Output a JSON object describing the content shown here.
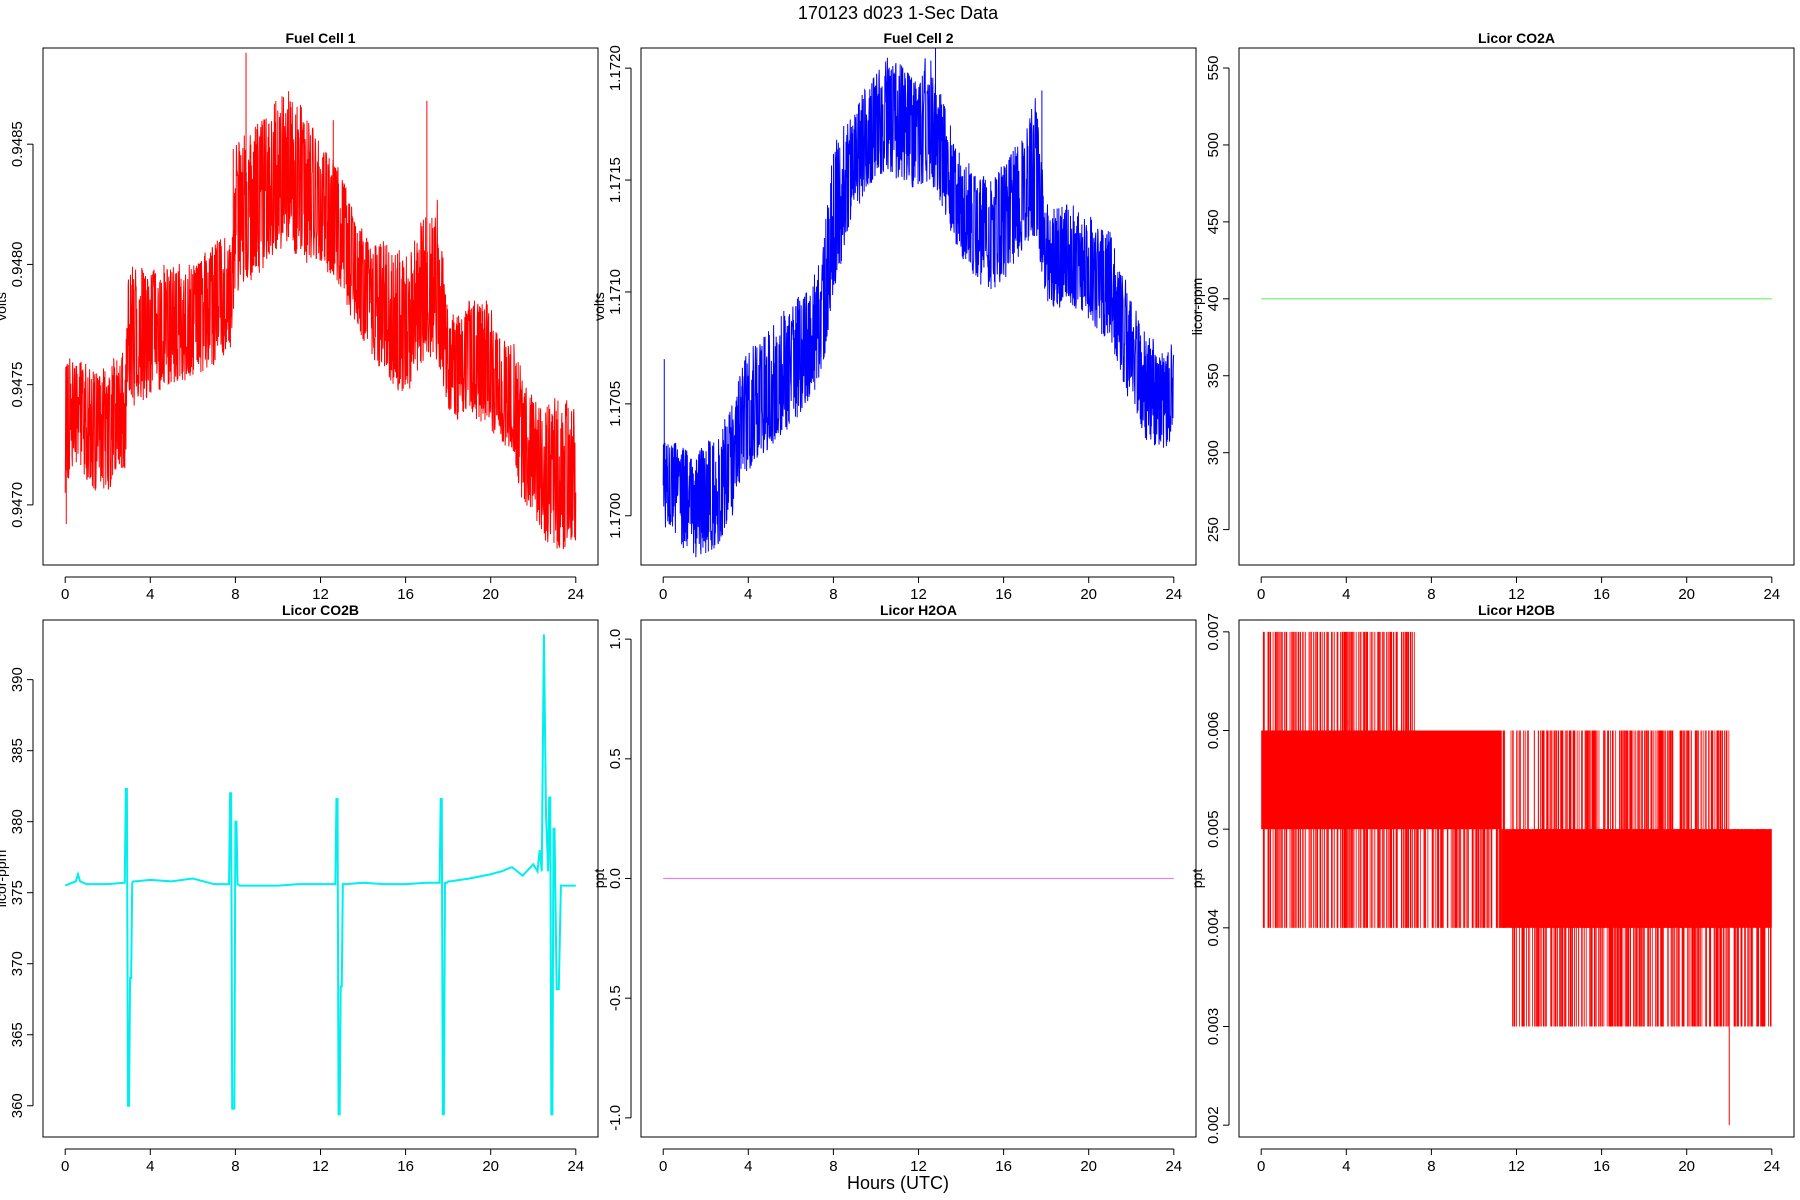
{
  "figure": {
    "title": "170123   d023   1-Sec Data",
    "xlabel": "Hours (UTC)"
  },
  "chart_data": [
    {
      "type": "line",
      "title": "Fuel Cell 1",
      "xlabel": "",
      "ylabel": "volts",
      "color": "#ff0000",
      "xlim": [
        0,
        24
      ],
      "xticks": [
        0,
        4,
        8,
        12,
        16,
        20,
        24
      ],
      "ylim": [
        0.94675,
        0.9489
      ],
      "yticks": [
        "0.9470",
        "0.9475",
        "0.9480",
        "0.9485"
      ],
      "grid": false,
      "series": [
        {
          "x": [
            0,
            0.5,
            1,
            1.5,
            2,
            2.5,
            2.8,
            3,
            4,
            5,
            6,
            7,
            7.8,
            8,
            9,
            10,
            10.5,
            11,
            12,
            13,
            13.5,
            14,
            14.5,
            15,
            16,
            17,
            17.5,
            18,
            18.5,
            19,
            20,
            20.5,
            21,
            21.5,
            22,
            22.5,
            23,
            23.5,
            24
          ],
          "mean": [
            0.94745,
            0.94738,
            0.94735,
            0.94728,
            0.9473,
            0.94735,
            0.94738,
            0.94765,
            0.9477,
            0.94775,
            0.94778,
            0.94785,
            0.94792,
            0.9481,
            0.94822,
            0.9483,
            0.94835,
            0.94828,
            0.94825,
            0.94815,
            0.948,
            0.94792,
            0.94785,
            0.9478,
            0.94772,
            0.9479,
            0.9479,
            0.9476,
            0.94755,
            0.94762,
            0.94755,
            0.94748,
            0.94745,
            0.94725,
            0.9472,
            0.9471,
            0.94708,
            0.94705,
            0.9471
          ],
          "max": [
            0.9477,
            0.9476,
            0.9476,
            0.94755,
            0.9476,
            0.94762,
            0.94765,
            0.948,
            0.94798,
            0.94802,
            0.948,
            0.9481,
            0.94815,
            0.9485,
            0.9486,
            0.9487,
            0.94872,
            0.94868,
            0.9485,
            0.9484,
            0.94825,
            0.94815,
            0.94808,
            0.9481,
            0.94805,
            0.94825,
            0.94828,
            0.9478,
            0.9478,
            0.94785,
            0.94785,
            0.9477,
            0.9477,
            0.94755,
            0.94745,
            0.9474,
            0.94745,
            0.94747,
            0.9474
          ],
          "min": [
            0.947,
            0.94718,
            0.9471,
            0.94705,
            0.94705,
            0.94712,
            0.94715,
            0.9474,
            0.94745,
            0.9475,
            0.94752,
            0.94758,
            0.94765,
            0.94785,
            0.94795,
            0.94805,
            0.9481,
            0.948,
            0.948,
            0.9479,
            0.94775,
            0.94768,
            0.9476,
            0.94752,
            0.94745,
            0.94762,
            0.9476,
            0.9474,
            0.94735,
            0.94738,
            0.9473,
            0.94725,
            0.94722,
            0.947,
            0.94695,
            0.94685,
            0.94682,
            0.9468,
            0.94685
          ],
          "spikes": [
            [
              0.05,
              0.94692
            ],
            [
              8.5,
              0.94888
            ],
            [
              10.5,
              0.94872
            ],
            [
              12.6,
              0.9486
            ],
            [
              17.0,
              0.94868
            ],
            [
              7.9,
              0.94848
            ]
          ]
        }
      ]
    },
    {
      "type": "line",
      "title": "Fuel Cell 2",
      "xlabel": "",
      "ylabel": "volts",
      "color": "#0000ff",
      "xlim": [
        0,
        24
      ],
      "xticks": [
        0,
        4,
        8,
        12,
        16,
        20,
        24
      ],
      "ylim": [
        1.16978,
        1.17209
      ],
      "yticks": [
        "1.1700",
        "1.1705",
        "1.1710",
        "1.1715",
        "1.1720"
      ],
      "grid": false,
      "series": [
        {
          "x": [
            0,
            0.5,
            1,
            1.5,
            2,
            2.5,
            3,
            3.5,
            4,
            5,
            6,
            7,
            7.5,
            8,
            9,
            10,
            10.5,
            11,
            12,
            12.5,
            13,
            14,
            15,
            15.5,
            16,
            17,
            17.5,
            18,
            18.5,
            19,
            20,
            20.5,
            21,
            21.5,
            22,
            22.5,
            23,
            23.5,
            24
          ],
          "mean": [
            1.1702,
            1.17015,
            1.17012,
            1.17008,
            1.1701,
            1.17015,
            1.1702,
            1.1703,
            1.17045,
            1.17055,
            1.17065,
            1.17075,
            1.1709,
            1.1713,
            1.1716,
            1.17175,
            1.1718,
            1.17178,
            1.1717,
            1.17172,
            1.17165,
            1.1714,
            1.17128,
            1.17125,
            1.1713,
            1.17145,
            1.1715,
            1.1712,
            1.17115,
            1.17118,
            1.1711,
            1.17105,
            1.17102,
            1.1709,
            1.17075,
            1.1706,
            1.17055,
            1.1705,
            1.17058
          ],
          "max": [
            1.1704,
            1.17035,
            1.1703,
            1.17028,
            1.17032,
            1.17038,
            1.17045,
            1.1706,
            1.17075,
            1.17085,
            1.17095,
            1.17105,
            1.1712,
            1.17165,
            1.17185,
            1.172,
            1.17205,
            1.17203,
            1.17195,
            1.1721,
            1.1719,
            1.17162,
            1.17152,
            1.1715,
            1.17158,
            1.17172,
            1.17188,
            1.1714,
            1.17138,
            1.1714,
            1.17135,
            1.17128,
            1.17128,
            1.17112,
            1.17098,
            1.17085,
            1.1708,
            1.17072,
            1.17078
          ],
          "min": [
            1.16995,
            1.1699,
            1.16985,
            1.1698,
            1.16982,
            1.16985,
            1.16995,
            1.17005,
            1.1702,
            1.1703,
            1.1704,
            1.17052,
            1.17065,
            1.171,
            1.17135,
            1.1715,
            1.17155,
            1.1715,
            1.17145,
            1.1715,
            1.1714,
            1.17115,
            1.17102,
            1.171,
            1.17105,
            1.1712,
            1.17125,
            1.17095,
            1.17092,
            1.17095,
            1.17088,
            1.17082,
            1.17078,
            1.17062,
            1.17048,
            1.17035,
            1.17032,
            1.17028,
            1.17035
          ],
          "spikes": [
            [
              12.8,
              1.1721
            ],
            [
              17.8,
              1.1719
            ],
            [
              0.05,
              1.1707
            ]
          ]
        }
      ]
    },
    {
      "type": "line",
      "title": "Licor CO2A",
      "xlabel": "",
      "ylabel": "licor-ppm",
      "color": "#66ee66",
      "xlim": [
        0,
        24
      ],
      "xticks": [
        0,
        4,
        8,
        12,
        16,
        20,
        24
      ],
      "ylim": [
        227,
        563
      ],
      "yticks": [
        "250",
        "300",
        "350",
        "400",
        "450",
        "500",
        "550"
      ],
      "grid": false,
      "series": [
        {
          "x": [
            0,
            24
          ],
          "y": [
            400,
            400
          ]
        }
      ]
    },
    {
      "type": "line",
      "title": "Licor CO2B",
      "xlabel": "",
      "ylabel": "licor-ppm",
      "color": "#00eeee",
      "xlim": [
        0,
        24
      ],
      "xticks": [
        0,
        4,
        8,
        12,
        16,
        20,
        24
      ],
      "ylim": [
        357.8,
        394.2
      ],
      "yticks": [
        "360",
        "365",
        "370",
        "375",
        "380",
        "385",
        "390"
      ],
      "grid": false,
      "series": [
        {
          "x": [
            0,
            0.5,
            0.6,
            0.7,
            1,
            2,
            2.8,
            2.85,
            2.9,
            2.95,
            3.0,
            3.05,
            3.1,
            3.15,
            3.2,
            3.3,
            4,
            5,
            6,
            7,
            7.7,
            7.75,
            7.8,
            7.85,
            7.95,
            8.0,
            8.05,
            8.1,
            8.2,
            8.25,
            8.3,
            9,
            10,
            11,
            12,
            12.7,
            12.75,
            12.8,
            12.85,
            12.9,
            12.95,
            13.0,
            13.05,
            13.1,
            13.2,
            14,
            15,
            16,
            17,
            17.6,
            17.65,
            17.7,
            17.75,
            17.8,
            17.85,
            17.9,
            17.95,
            18.0,
            18.1,
            19,
            20,
            20.5,
            21,
            21.5,
            22,
            22.2,
            22.3,
            22.4,
            22.5,
            22.6,
            22.7,
            22.75,
            22.8,
            22.85,
            22.9,
            22.95,
            23.0,
            23.1,
            23.2,
            23.3,
            23.4,
            23.5,
            24
          ],
          "y": [
            375.5,
            375.8,
            376.3,
            375.8,
            375.6,
            375.6,
            375.7,
            382.3,
            382.3,
            360.0,
            360.0,
            369.0,
            369.0,
            375.7,
            375.8,
            375.8,
            375.9,
            375.8,
            376.0,
            375.6,
            375.6,
            382.0,
            382.0,
            359.8,
            359.8,
            380.0,
            380.0,
            375.6,
            375.5,
            375.5,
            375.5,
            375.5,
            375.5,
            375.6,
            375.6,
            375.6,
            381.6,
            381.6,
            359.4,
            359.4,
            368.4,
            368.4,
            375.6,
            375.6,
            375.6,
            375.7,
            375.6,
            375.6,
            375.7,
            375.7,
            381.6,
            381.6,
            359.4,
            359.4,
            375.7,
            375.7,
            375.7,
            375.8,
            375.8,
            376.0,
            376.3,
            376.5,
            376.8,
            376.2,
            377.0,
            376.5,
            378.0,
            376.5,
            393.2,
            380.5,
            376.5,
            381.7,
            381.7,
            359.4,
            359.4,
            379.5,
            379.5,
            368.2,
            368.2,
            375.5,
            375.5,
            375.5,
            375.5
          ]
        }
      ]
    },
    {
      "type": "line",
      "title": "Licor H2OA",
      "xlabel": "",
      "ylabel": "ppt",
      "color": "#dd88dd",
      "xlim": [
        0,
        24
      ],
      "xticks": [
        0,
        4,
        8,
        12,
        16,
        20,
        24
      ],
      "ylim": [
        -1.08,
        1.08
      ],
      "yticks": [
        "-1.0",
        "-0.5",
        "0.0",
        "0.5",
        "1.0"
      ],
      "grid": false,
      "series": [
        {
          "x": [
            0,
            24
          ],
          "y": [
            0,
            0
          ]
        }
      ]
    },
    {
      "type": "line",
      "title": "Licor H2OB",
      "xlabel": "",
      "ylabel": "ppt",
      "color": "#ff0000",
      "xlim": [
        0,
        24
      ],
      "xticks": [
        0,
        4,
        8,
        12,
        16,
        20,
        24
      ],
      "ylim": [
        0.00188,
        0.00712
      ],
      "yticks": [
        "0.002",
        "0.003",
        "0.004",
        "0.005",
        "0.006",
        "0.007"
      ],
      "grid": false,
      "series": [
        {
          "bands": [
            {
              "x": [
                0,
                11.3
              ],
              "y": [
                0.005,
                0.006
              ]
            },
            {
              "x": [
                11.3,
                24
              ],
              "y": [
                0.004,
                0.005
              ]
            }
          ],
          "levels": [
            0.002,
            0.003,
            0.004,
            0.005,
            0.006,
            0.007
          ],
          "spike_regions": [
            {
              "x": [
                0,
                7.2
              ],
              "y": [
                0.004,
                0.007
              ]
            },
            {
              "x": [
                7.2,
                11.3
              ],
              "y": [
                0.004,
                0.006
              ]
            },
            {
              "x": [
                11.3,
                22
              ],
              "y": [
                0.004,
                0.006
              ]
            },
            {
              "x": [
                11.8,
                24
              ],
              "y": [
                0.003,
                0.005
              ]
            }
          ],
          "outliers": [
            [
              22.0,
              0.002
            ]
          ]
        }
      ]
    }
  ]
}
